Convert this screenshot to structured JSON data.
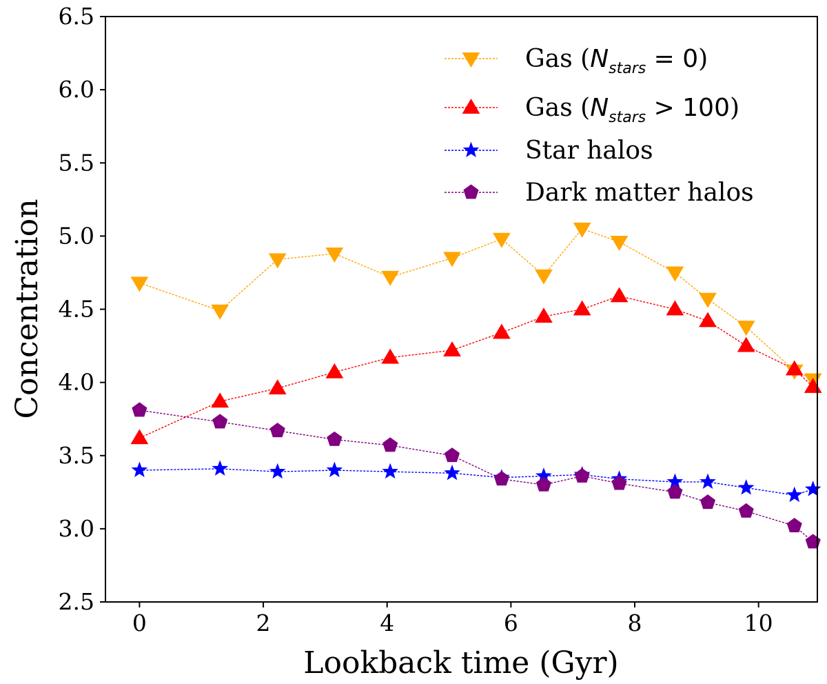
{
  "chart_data": {
    "type": "line",
    "xlabel": "Lookback time (Gyr)",
    "ylabel": "Concentration",
    "xlim": [
      -0.55,
      10.95
    ],
    "ylim": [
      2.5,
      6.5
    ],
    "xticks": [
      0,
      2,
      4,
      6,
      8,
      10
    ],
    "xtick_labels": [
      "0",
      "2",
      "4",
      "6",
      "8",
      "10"
    ],
    "yticks": [
      2.5,
      3.0,
      3.5,
      4.0,
      4.5,
      5.0,
      5.5,
      6.0,
      6.5
    ],
    "ytick_labels": [
      "2.5",
      "3.0",
      "3.5",
      "4.0",
      "4.5",
      "5.0",
      "5.5",
      "6.0",
      "6.5"
    ],
    "legend_position": "top-right",
    "x": [
      0,
      1.3,
      2.23,
      3.15,
      4.05,
      5.05,
      5.85,
      6.53,
      7.15,
      7.75,
      8.65,
      9.18,
      9.8,
      10.58,
      10.88
    ],
    "series": [
      {
        "name": "Gas (N_stars = 0)",
        "legend": {
          "prefix": "Gas (",
          "var": "N",
          "sub": "stars",
          "op": " = 0",
          "suffix": ")"
        },
        "color": "#FFA500",
        "marker": "triangle-down",
        "values": [
          4.68,
          4.49,
          4.84,
          4.88,
          4.72,
          4.85,
          4.98,
          4.73,
          5.05,
          4.96,
          4.75,
          4.57,
          4.38,
          4.08,
          4.02
        ]
      },
      {
        "name": "Gas (N_stars > 100)",
        "legend": {
          "prefix": "Gas (",
          "var": "N",
          "sub": "stars",
          "op": " > 100",
          "suffix": ")"
        },
        "color": "#FF0000",
        "marker": "triangle-up",
        "values": [
          3.62,
          3.87,
          3.96,
          4.07,
          4.17,
          4.22,
          4.34,
          4.45,
          4.5,
          4.59,
          4.5,
          4.42,
          4.25,
          4.09,
          3.97
        ]
      },
      {
        "name": "Star halos",
        "legend": {
          "text": "Star halos"
        },
        "color": "#0000FF",
        "marker": "star",
        "values": [
          3.4,
          3.41,
          3.39,
          3.4,
          3.39,
          3.38,
          3.35,
          3.36,
          3.37,
          3.34,
          3.32,
          3.32,
          3.28,
          3.23,
          3.27
        ]
      },
      {
        "name": "Dark matter halos",
        "legend": {
          "text": "Dark matter halos"
        },
        "color": "#800080",
        "marker": "pentagon",
        "values": [
          3.81,
          3.73,
          3.67,
          3.61,
          3.57,
          3.5,
          3.34,
          3.3,
          3.36,
          3.31,
          3.25,
          3.18,
          3.12,
          3.02,
          2.91
        ]
      }
    ]
  }
}
